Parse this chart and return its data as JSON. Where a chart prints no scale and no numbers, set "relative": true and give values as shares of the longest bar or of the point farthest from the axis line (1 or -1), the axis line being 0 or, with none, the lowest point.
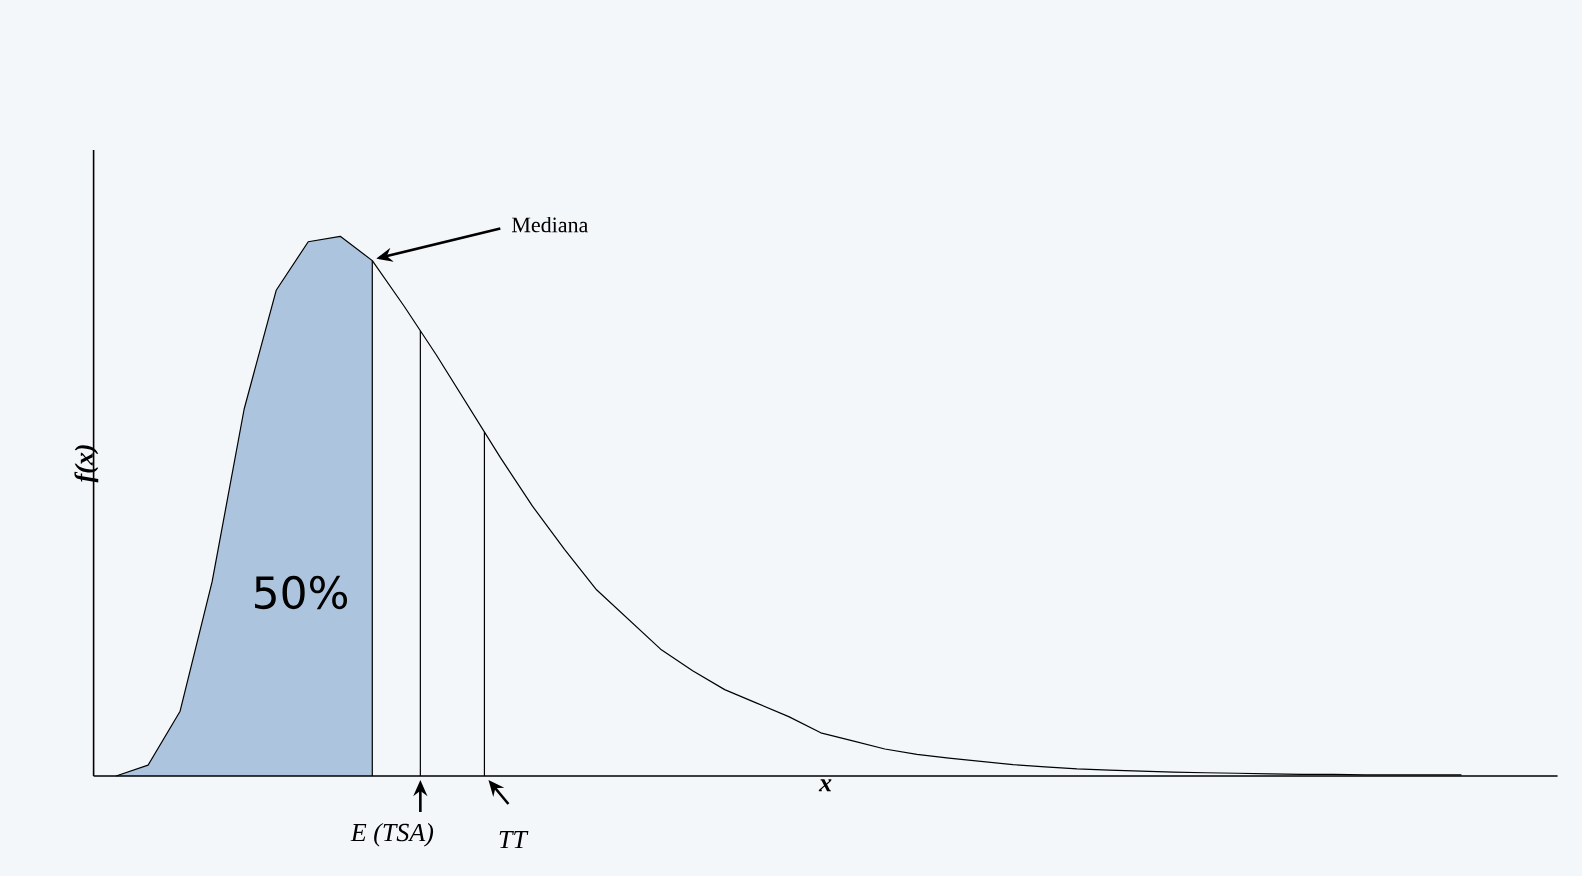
{
  "chart_data": {
    "type": "line",
    "relative": true,
    "xlabel": "x",
    "ylabel": "f(x)",
    "categories": [
      null,
      null,
      null,
      null,
      null,
      null,
      null,
      null,
      null,
      null,
      null,
      null,
      null,
      null,
      null,
      null,
      null,
      null,
      null,
      null,
      null,
      null,
      null,
      null,
      null,
      null,
      null,
      null,
      null,
      null,
      null,
      null,
      null,
      null,
      null,
      null,
      null,
      null,
      null,
      null,
      null,
      null,
      null
    ],
    "series": [
      {
        "color": "#000000",
        "values": [
          0.0,
          0.02,
          0.12,
          0.36,
          0.68,
          0.9,
          0.99,
          1.0,
          0.955,
          0.87,
          0.78,
          0.685,
          0.59,
          0.5,
          0.42,
          0.345,
          0.29,
          0.235,
          0.195,
          0.16,
          0.135,
          0.11,
          0.08,
          0.065,
          0.05,
          0.04,
          0.033,
          0.027,
          0.021,
          0.017,
          0.013,
          0.011,
          0.009,
          0.007,
          0.006,
          0.005,
          0.004,
          0.003,
          0.003,
          0.002,
          0.002,
          0.002,
          0.002
        ]
      }
    ],
    "annotations": [
      "Mediana",
      "50%",
      "E (TSA)",
      "TT"
    ]
  }
}
